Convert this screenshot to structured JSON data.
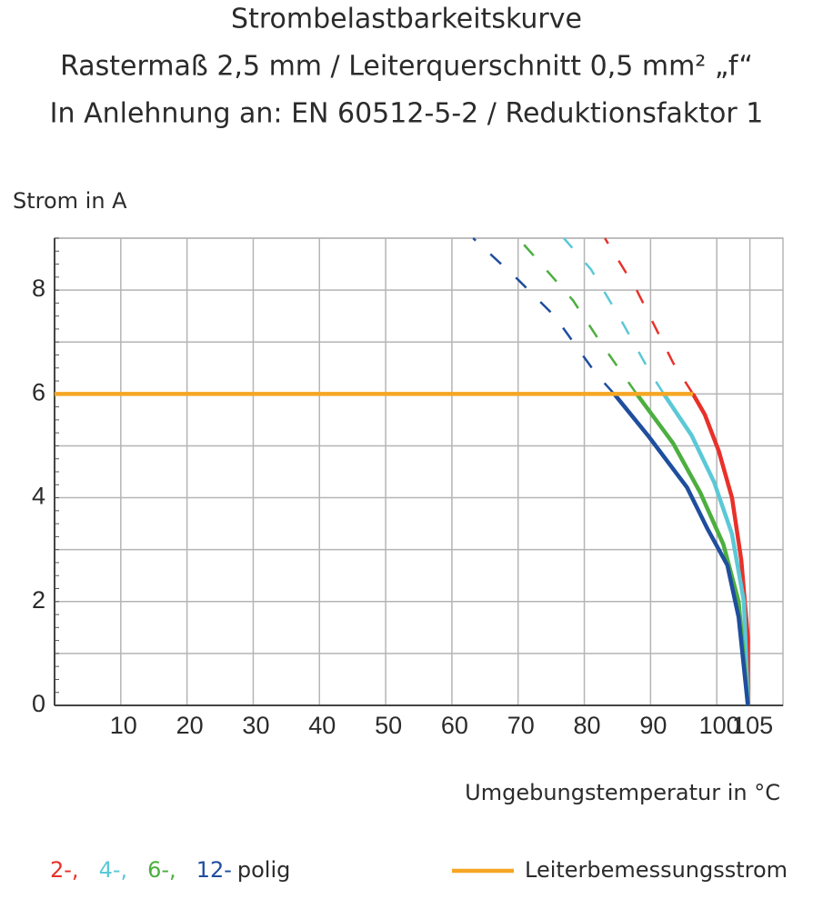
{
  "chart_data": {
    "type": "line",
    "title": "Strombelastbarkeitskurve",
    "subtitle": "Rastermaß 2,5 mm / Leiterquerschnitt 0,5 mm² „f“",
    "subtitle2": "In Anlehnung an: EN 60512-5-2 / Reduktionsfaktor 1",
    "ylabel": "Strom in A",
    "xlabel": "Umgebungstemperatur in °C",
    "legend_suffix": "polig",
    "xlim": [
      0,
      110
    ],
    "xticks": [
      10,
      20,
      30,
      40,
      50,
      60,
      70,
      80,
      90,
      100,
      105
    ],
    "ylim": [
      0,
      9
    ],
    "yticks": [
      0,
      2,
      4,
      6,
      8
    ],
    "yminor": [
      1,
      3,
      5,
      7,
      9
    ],
    "grid": true,
    "series": [
      {
        "name": "2-,",
        "color": "#e8312a",
        "x": [
          96.4,
          98.2,
          100.3,
          102.3,
          103.7,
          104.7,
          104.7
        ],
        "values": [
          6,
          5.6,
          4.9,
          4.0,
          2.8,
          1.3,
          0
        ],
        "dashed_x": [
          96.4,
          93.4,
          87.9,
          83.1
        ],
        "dashed_values": [
          6,
          6.6,
          8,
          9
        ]
      },
      {
        "name": "4-,",
        "color": "#5bc8d6",
        "x": [
          92,
          96.2,
          99.6,
          102.3,
          104.1,
          104.7
        ],
        "values": [
          6,
          5.2,
          4.3,
          3.3,
          2,
          0
        ],
        "dashed_x": [
          92,
          90,
          85.2,
          81,
          76.9
        ],
        "dashed_values": [
          6,
          6.4,
          7.5,
          8.4,
          9
        ]
      },
      {
        "name": "6-,",
        "color": "#4caf3f",
        "x": [
          87.9,
          93.4,
          97.5,
          101,
          103.3,
          104.7
        ],
        "values": [
          6,
          5.05,
          4.1,
          3.1,
          2.0,
          0
        ],
        "dashed_x": [
          87.9,
          82.4,
          78.3,
          72.8,
          70
        ],
        "dashed_values": [
          6,
          7,
          7.8,
          8.6,
          9
        ]
      },
      {
        "name": "12-",
        "color": "#1f4e9e",
        "x": [
          84.5,
          89.6,
          95.5,
          98.6,
          101.6,
          103.3,
          104.7
        ],
        "values": [
          6,
          5.2,
          4.2,
          3.4,
          2.7,
          1.7,
          0
        ],
        "dashed_x": [
          84.5,
          81.7,
          75.5,
          70,
          63.2
        ],
        "dashed_values": [
          6,
          6.4,
          7.5,
          8.2,
          9
        ]
      },
      {
        "name": "Leiterbemessungsstrom",
        "color": "#f5a623",
        "x": [
          0,
          96.4
        ],
        "values": [
          6,
          6
        ]
      }
    ]
  }
}
